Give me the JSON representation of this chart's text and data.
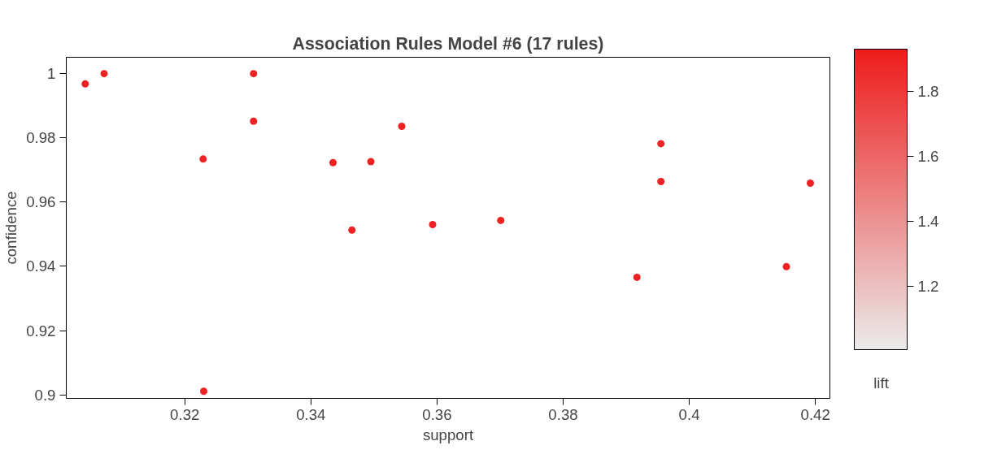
{
  "chart_data": {
    "type": "scatter",
    "title": "Association Rules Model #6 (17 rules)",
    "xlabel": "support",
    "ylabel": "confidence",
    "clabel": "lift",
    "x": [
      0.3042,
      0.3072,
      0.3229,
      0.323,
      0.3309,
      0.3309,
      0.3435,
      0.3465,
      0.3495,
      0.3544,
      0.3593,
      0.3701,
      0.3917,
      0.3955,
      0.3955,
      0.4154,
      0.4192
    ],
    "values": [
      0.9968,
      1.0,
      0.9734,
      0.9011,
      1.0,
      0.9852,
      0.9723,
      0.9513,
      0.9726,
      0.9836,
      0.953,
      0.9543,
      0.9366,
      0.9782,
      0.9664,
      0.9399,
      0.9659
    ],
    "cvalues": [
      1.9,
      1.9,
      1.9,
      1.9,
      1.9,
      1.9,
      1.9,
      1.9,
      1.9,
      1.9,
      1.9,
      1.9,
      1.9,
      1.9,
      1.9,
      1.9,
      1.9
    ],
    "color": "#ee1c1c",
    "clim": [
      1.005,
      1.93
    ],
    "cticks": [
      1.2,
      1.4,
      1.6,
      1.8
    ],
    "xlim": [
      0.3012,
      0.4223
    ],
    "xticks": [
      0.32,
      0.34,
      0.36,
      0.38,
      0.4,
      0.42
    ],
    "ylim": [
      0.8989,
      1.0051
    ],
    "yticks": [
      0.9,
      0.92,
      0.94,
      0.96,
      0.98,
      1
    ],
    "marker": "circle",
    "grid": false
  }
}
